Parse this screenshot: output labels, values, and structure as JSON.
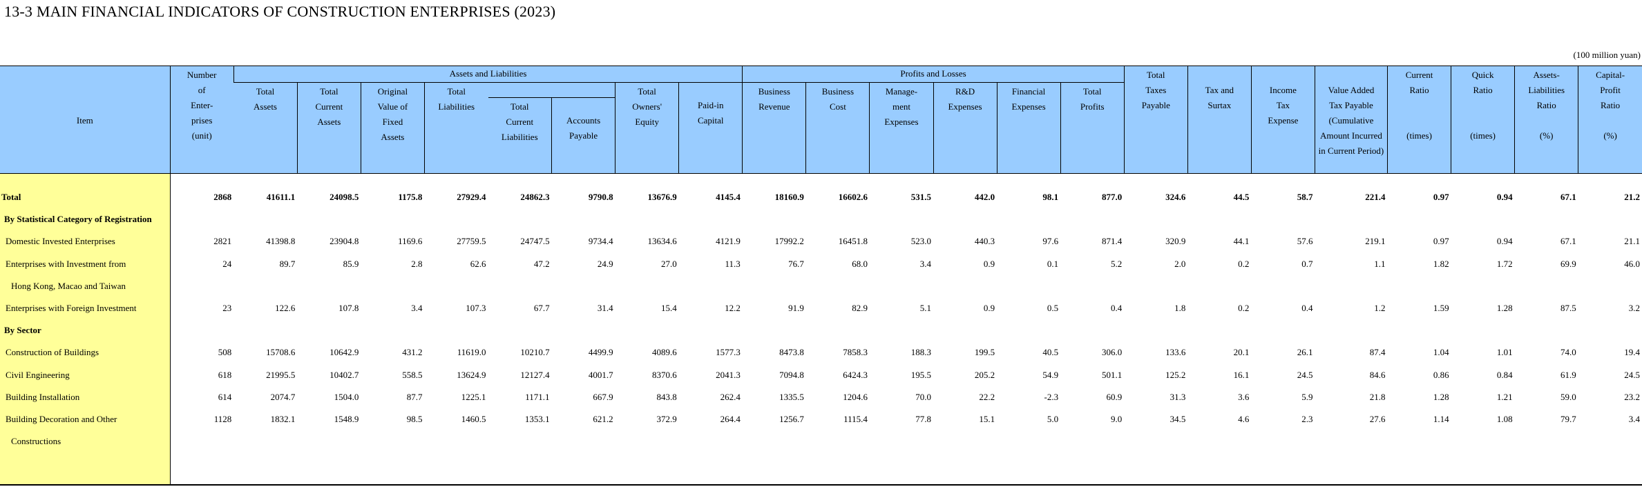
{
  "title": "13-3  MAIN FINANCIAL INDICATORS OF CONSTRUCTION ENTERPRISES (2023)",
  "unit_note": "(100 million yuan)",
  "header": {
    "item": "Item",
    "number": [
      "Number",
      "of",
      "Enter-",
      "prises",
      "(unit)"
    ],
    "group_assets": "Assets and Liabilities",
    "group_profits": "Profits  and  Losses",
    "total_assets": [
      "Total",
      "Assets"
    ],
    "total_current_assets": [
      "Total",
      "Current",
      "Assets"
    ],
    "fixed_assets": [
      "Original",
      "Value of",
      "Fixed",
      "Assets"
    ],
    "total_liabilities": [
      "Total",
      "Liabilities"
    ],
    "total_current_liabilities": [
      "Total",
      "Current",
      "Liabilities"
    ],
    "accounts_payable": [
      "Accounts",
      "Payable"
    ],
    "owners_equity": [
      "Total",
      "Owners'",
      "Equity"
    ],
    "paid_in_capital": [
      "Paid-in",
      "Capital"
    ],
    "business_revenue": [
      "Business",
      "Revenue"
    ],
    "business_cost": [
      "Business",
      "Cost"
    ],
    "management_expenses": [
      "Manage-",
      "ment",
      "Expenses"
    ],
    "rd_expenses": [
      "R&D",
      "Expenses"
    ],
    "financial_expenses": [
      "Financial",
      "Expenses"
    ],
    "total_profits": [
      "Total",
      "Profits"
    ],
    "total_taxes": [
      "Total",
      "Taxes",
      "Payable"
    ],
    "tax_surtax": [
      "Tax and",
      "Surtax"
    ],
    "income_tax": [
      "Income",
      "Tax",
      "Expense"
    ],
    "vat": [
      "Value Added",
      "Tax Payable",
      "(Cumulative",
      "Amount Incurred",
      "in Current Period)"
    ],
    "current_ratio": [
      "Current",
      "Ratio",
      "",
      "",
      "(times)"
    ],
    "quick_ratio": [
      "Quick",
      "Ratio",
      "",
      "",
      "(times)"
    ],
    "assets_liabilities_ratio": [
      "Assets-",
      "Liabilities",
      "Ratio",
      "",
      "(%)"
    ],
    "capital_profit_ratio": [
      "Capital-",
      "Profit",
      "Ratio",
      "",
      "(%)"
    ]
  },
  "rows": [
    {
      "label": "Total",
      "kind": "total",
      "values": [
        "2868",
        "41611.1",
        "24098.5",
        "1175.8",
        "27929.4",
        "24862.3",
        "9790.8",
        "13676.9",
        "4145.4",
        "18160.9",
        "16602.6",
        "531.5",
        "442.0",
        "98.1",
        "877.0",
        "324.6",
        "44.5",
        "58.7",
        "221.4",
        "0.97",
        "0.94",
        "67.1",
        "21.2"
      ]
    },
    {
      "label": "By Statistical Category of Registration",
      "kind": "section",
      "values": []
    },
    {
      "label": "Domestic Invested Enterprises",
      "kind": "item",
      "values": [
        "2821",
        "41398.8",
        "23904.8",
        "1169.6",
        "27759.5",
        "24747.5",
        "9734.4",
        "13634.6",
        "4121.9",
        "17992.2",
        "16451.8",
        "523.0",
        "440.3",
        "97.6",
        "871.4",
        "320.9",
        "44.1",
        "57.6",
        "219.1",
        "0.97",
        "0.94",
        "67.1",
        "21.1"
      ]
    },
    {
      "label": "Enterprises with Investment from",
      "kind": "item",
      "values": [
        "24",
        "89.7",
        "85.9",
        "2.8",
        "62.6",
        "47.2",
        "24.9",
        "27.0",
        "11.3",
        "76.7",
        "68.0",
        "3.4",
        "0.9",
        "0.1",
        "5.2",
        "2.0",
        "0.2",
        "0.7",
        "1.1",
        "1.82",
        "1.72",
        "69.9",
        "46.0"
      ]
    },
    {
      "label": "Hong Kong, Macao and Taiwan",
      "kind": "cont",
      "values": []
    },
    {
      "label": "Enterprises with Foreign Investment",
      "kind": "item",
      "values": [
        "23",
        "122.6",
        "107.8",
        "3.4",
        "107.3",
        "67.7",
        "31.4",
        "15.4",
        "12.2",
        "91.9",
        "82.9",
        "5.1",
        "0.9",
        "0.5",
        "0.4",
        "1.8",
        "0.2",
        "0.4",
        "1.2",
        "1.59",
        "1.28",
        "87.5",
        "3.2"
      ]
    },
    {
      "label": "By Sector",
      "kind": "section",
      "values": []
    },
    {
      "label": "Construction of Buildings",
      "kind": "item",
      "values": [
        "508",
        "15708.6",
        "10642.9",
        "431.2",
        "11619.0",
        "10210.7",
        "4499.9",
        "4089.6",
        "1577.3",
        "8473.8",
        "7858.3",
        "188.3",
        "199.5",
        "40.5",
        "306.0",
        "133.6",
        "20.1",
        "26.1",
        "87.4",
        "1.04",
        "1.01",
        "74.0",
        "19.4"
      ]
    },
    {
      "label": "Civil Engineering",
      "kind": "item",
      "values": [
        "618",
        "21995.5",
        "10402.7",
        "558.5",
        "13624.9",
        "12127.4",
        "4001.7",
        "8370.6",
        "2041.3",
        "7094.8",
        "6424.3",
        "195.5",
        "205.2",
        "54.9",
        "501.1",
        "125.2",
        "16.1",
        "24.5",
        "84.6",
        "0.86",
        "0.84",
        "61.9",
        "24.5"
      ]
    },
    {
      "label": "Building Installation",
      "kind": "item",
      "values": [
        "614",
        "2074.7",
        "1504.0",
        "87.7",
        "1225.1",
        "1171.1",
        "667.9",
        "843.8",
        "262.4",
        "1335.5",
        "1204.6",
        "70.0",
        "22.2",
        "-2.3",
        "60.9",
        "31.3",
        "3.6",
        "5.9",
        "21.8",
        "1.28",
        "1.21",
        "59.0",
        "23.2"
      ]
    },
    {
      "label": "Building Decoration and Other",
      "kind": "item",
      "values": [
        "1128",
        "1832.1",
        "1548.9",
        "98.5",
        "1460.5",
        "1353.1",
        "621.2",
        "372.9",
        "264.4",
        "1256.7",
        "1115.4",
        "77.8",
        "15.1",
        "5.0",
        "9.0",
        "34.5",
        "4.6",
        "2.3",
        "27.6",
        "1.14",
        "1.08",
        "79.7",
        "3.4"
      ]
    },
    {
      "label": "Constructions",
      "kind": "cont",
      "values": []
    }
  ]
}
